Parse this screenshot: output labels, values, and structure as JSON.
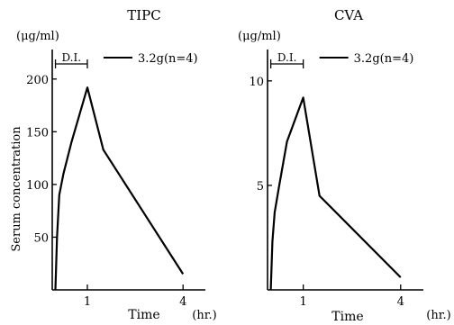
{
  "ylabel_shared": "Serum concentration",
  "chart_data": [
    {
      "type": "line",
      "title": "TIPC",
      "yunit": "(μg/ml)",
      "xlabel": "Time",
      "xunit": "(hr.)",
      "infusion_label": "D.I.",
      "series": [
        {
          "name": "3.2g(n=4)",
          "x": [
            0,
            0.05,
            0.12,
            0.25,
            0.5,
            1.0,
            1.5,
            4.0
          ],
          "y": [
            0,
            50,
            90,
            110,
            140,
            192,
            133,
            15
          ]
        }
      ],
      "xticks": [
        1,
        4
      ],
      "xtick_labels": [
        "1",
        "4"
      ],
      "yticks": [
        50,
        100,
        150,
        200
      ],
      "ytick_labels": [
        "50",
        "100",
        "150",
        "200"
      ],
      "xlim": [
        -0.1,
        4.7
      ],
      "ylim": [
        0,
        228
      ],
      "infusion": [
        0,
        1
      ]
    },
    {
      "type": "line",
      "title": "CVA",
      "yunit": "(μg/ml)",
      "xlabel": "Time",
      "xunit": "(hr.)",
      "infusion_label": "D.I.",
      "series": [
        {
          "name": "3.2g(n=4)",
          "x": [
            0,
            0.05,
            0.12,
            0.25,
            0.5,
            1.0,
            1.5,
            4.0
          ],
          "y": [
            0,
            2.3,
            3.7,
            4.9,
            7.1,
            9.2,
            4.5,
            0.6
          ]
        }
      ],
      "xticks": [
        1,
        4
      ],
      "xtick_labels": [
        "1",
        "4"
      ],
      "yticks": [
        5,
        10
      ],
      "ytick_labels": [
        "5",
        "10"
      ],
      "xlim": [
        -0.1,
        4.7
      ],
      "ylim": [
        0,
        11.5
      ],
      "infusion": [
        0,
        1
      ]
    }
  ]
}
